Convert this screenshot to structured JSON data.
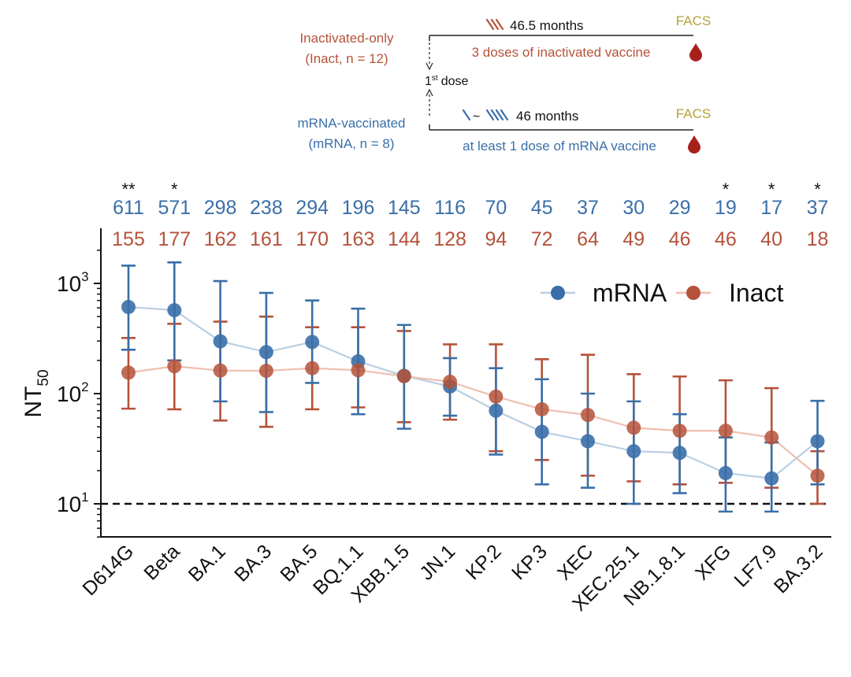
{
  "schematic": {
    "inact_group_line1": "Inactivated-only",
    "inact_group_line2": "(Inact, n = 12)",
    "inact_interval": "46.5 months",
    "inact_doses": "3 doses of inactivated vaccine",
    "facs_label": "FACS",
    "first_dose_main": "1",
    "first_dose_sup": "st",
    "first_dose_word": "dose",
    "mrna_group_line1": "mRNA-vaccinated",
    "mrna_group_line2": "(mRNA, n = 8)",
    "mrna_interval_tilde": "~",
    "mrna_interval": "46 months",
    "mrna_doses": "at least 1 dose of mRNA vaccine"
  },
  "colors": {
    "mrna": "#3a6fa8",
    "mrna_line": "#b9cfe3",
    "inact": "#b5523a",
    "inact_line": "#efbfb0",
    "facs": "#b5a03a",
    "blood": "#a8201c"
  },
  "chart_data": {
    "type": "line",
    "ylabel_main": "NT",
    "ylabel_sub": "50",
    "yscale": "log",
    "ylim": [
      5,
      2500
    ],
    "yticks": [
      {
        "value": 10,
        "base": "10",
        "exp": "1"
      },
      {
        "value": 100,
        "base": "10",
        "exp": "2"
      },
      {
        "value": 1000,
        "base": "10",
        "exp": "3"
      }
    ],
    "detection_limit": 10,
    "legend_position": "top-right",
    "categories": [
      "D614G",
      "Beta",
      "BA.1",
      "BA.3",
      "BA.5",
      "BQ.1.1",
      "XBB.1.5",
      "JN.1",
      "KP.2",
      "KP.3",
      "XEC",
      "XEC.25.1",
      "NB.1.8.1",
      "XFG",
      "LF7.9",
      "BA.3.2"
    ],
    "significance": [
      "**",
      "*",
      "",
      "",
      "",
      "",
      "",
      "",
      "",
      "",
      "",
      "",
      "",
      "*",
      "*",
      "*"
    ],
    "series": [
      {
        "name": "mRNA",
        "values": [
          611,
          571,
          298,
          238,
          294,
          196,
          145,
          116,
          70,
          45,
          37,
          30,
          29,
          19,
          17,
          37
        ],
        "labels": [
          "611",
          "571",
          "298",
          "238",
          "294",
          "196",
          "145",
          "116",
          "70",
          "45",
          "37",
          "30",
          "29",
          "19",
          "17",
          "37"
        ],
        "err_low": [
          250,
          200,
          85,
          68,
          125,
          65,
          48,
          63,
          28,
          15,
          14,
          10,
          12.5,
          8.5,
          8.5,
          15
        ],
        "err_high": [
          1450,
          1550,
          1050,
          820,
          700,
          590,
          420,
          210,
          170,
          135,
          100,
          85,
          65,
          40,
          36,
          86
        ]
      },
      {
        "name": "Inact",
        "values": [
          155,
          177,
          162,
          161,
          170,
          163,
          144,
          128,
          94,
          72,
          64,
          49,
          46,
          46,
          40,
          18
        ],
        "labels": [
          "155",
          "177",
          "162",
          "161",
          "170",
          "163",
          "144",
          "128",
          "94",
          "72",
          "64",
          "49",
          "46",
          "46",
          "40",
          "18"
        ],
        "err_low": [
          73,
          72,
          57,
          50,
          72,
          75,
          55,
          58,
          30,
          25,
          18,
          16,
          15,
          15.5,
          14,
          10
        ],
        "err_high": [
          320,
          430,
          450,
          500,
          400,
          400,
          370,
          280,
          280,
          205,
          225,
          150,
          143,
          132,
          112,
          30
        ]
      }
    ]
  }
}
